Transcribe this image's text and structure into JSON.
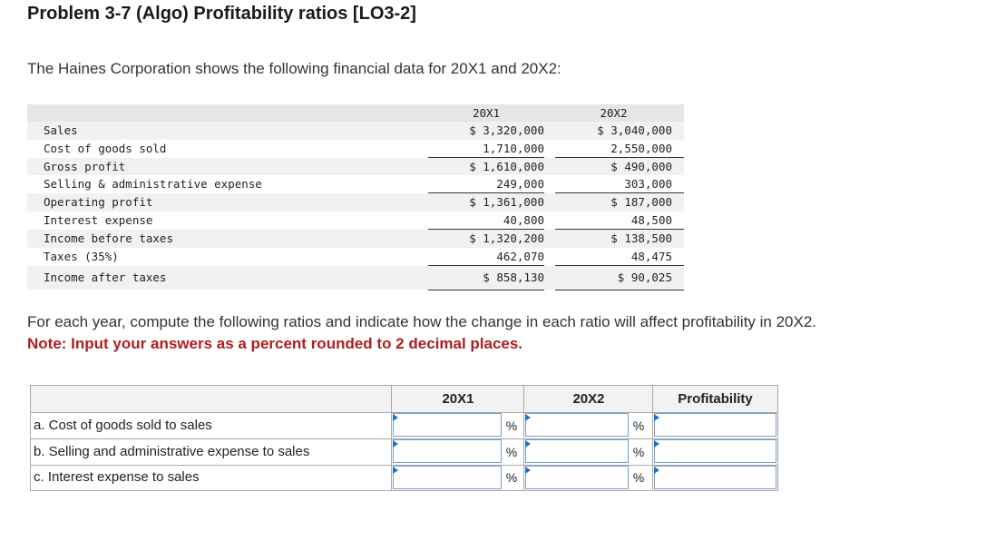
{
  "title": "Problem 3-7 (Algo) Profitability ratios [LO3-2]",
  "intro": "The Haines Corporation shows the following financial data for 20X1 and 20X2:",
  "financials": {
    "col1": "20X1",
    "col2": "20X2",
    "rows": [
      {
        "label": "Sales",
        "v1": "$ 3,320,000",
        "v2": "$ 3,040,000"
      },
      {
        "label": "Cost of goods sold",
        "v1": "1,710,000",
        "v2": "2,550,000"
      },
      {
        "label": "Gross profit",
        "v1": "$ 1,610,000",
        "v2": "$ 490,000"
      },
      {
        "label": "Selling & administrative expense",
        "v1": "249,000",
        "v2": "303,000"
      },
      {
        "label": "Operating profit",
        "v1": "$ 1,361,000",
        "v2": "$ 187,000"
      },
      {
        "label": "Interest expense",
        "v1": "40,800",
        "v2": "48,500"
      },
      {
        "label": "Income before taxes",
        "v1": "$ 1,320,200",
        "v2": "$ 138,500"
      },
      {
        "label": "Taxes (35%)",
        "v1": "462,070",
        "v2": "48,475"
      },
      {
        "label": "Income after taxes",
        "v1": "$ 858,130",
        "v2": "$ 90,025"
      }
    ]
  },
  "instruction": "For each year, compute the following ratios and indicate how the change in each ratio will affect profitability in 20X2.",
  "note": "Note: Input your answers as a percent rounded to 2 decimal places.",
  "answer_table": {
    "headers": {
      "col1": "20X1",
      "col2": "20X2",
      "col3": "Profitability"
    },
    "pct_symbol": "%",
    "rows": [
      {
        "label": "a. Cost of goods sold to sales",
        "v1": "",
        "v2": "",
        "profit": ""
      },
      {
        "label": "b. Selling and administrative expense to sales",
        "v1": "",
        "v2": "",
        "profit": ""
      },
      {
        "label": "c. Interest expense to sales",
        "v1": "",
        "v2": "",
        "profit": ""
      }
    ]
  }
}
